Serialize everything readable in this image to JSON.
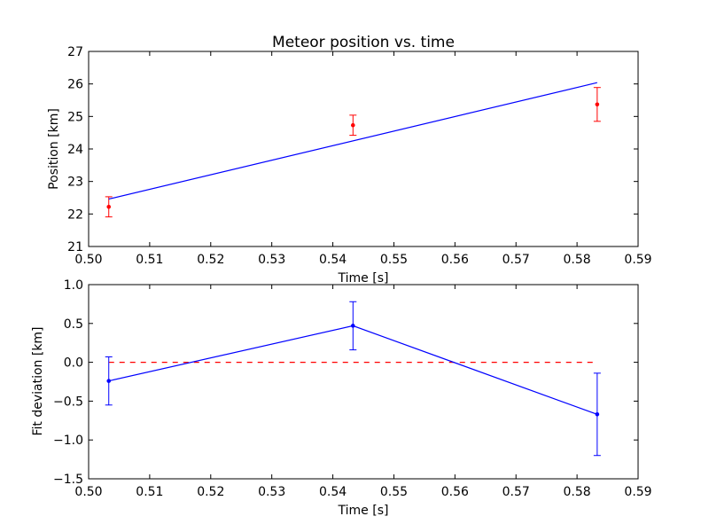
{
  "chart_data": [
    {
      "type": "scatter",
      "title": "Meteor position vs. time",
      "xlabel": "Time [s]",
      "ylabel": "Position [km]",
      "xlim": [
        0.5,
        0.59
      ],
      "ylim": [
        21,
        27
      ],
      "xticks": [
        "0.50",
        "0.51",
        "0.52",
        "0.53",
        "0.54",
        "0.55",
        "0.56",
        "0.57",
        "0.58",
        "0.59"
      ],
      "yticks": [
        "21",
        "22",
        "23",
        "24",
        "25",
        "26",
        "27"
      ],
      "grid": false,
      "series": [
        {
          "kind": "errorbar-points",
          "color": "#ff0000",
          "x": [
            0.5033,
            0.5433,
            0.5833
          ],
          "y": [
            22.22,
            24.73,
            25.37
          ],
          "yerr": [
            0.31,
            0.31,
            0.52
          ]
        },
        {
          "kind": "line",
          "color": "#0000ff",
          "x": [
            0.5033,
            0.5833
          ],
          "y": [
            22.46,
            26.04
          ]
        }
      ]
    },
    {
      "type": "scatter",
      "title": "",
      "xlabel": "Time [s]",
      "ylabel": "Fit deviation [km]",
      "xlim": [
        0.5,
        0.59
      ],
      "ylim": [
        -1.5,
        1.0
      ],
      "xticks": [
        "0.50",
        "0.51",
        "0.52",
        "0.53",
        "0.54",
        "0.55",
        "0.56",
        "0.57",
        "0.58",
        "0.59"
      ],
      "yticks": [
        "−1.5",
        "−1.0",
        "−0.5",
        "0.0",
        "0.5",
        "1.0"
      ],
      "grid": false,
      "series": [
        {
          "kind": "dashed-line",
          "color": "#ff0000",
          "x": [
            0.5033,
            0.5833
          ],
          "y": [
            0.0,
            0.0
          ]
        },
        {
          "kind": "errorbar-line",
          "color": "#0000ff",
          "x": [
            0.5033,
            0.5433,
            0.5833
          ],
          "y": [
            -0.24,
            0.47,
            -0.67
          ],
          "yerr": [
            0.31,
            0.31,
            0.53
          ]
        }
      ]
    }
  ]
}
